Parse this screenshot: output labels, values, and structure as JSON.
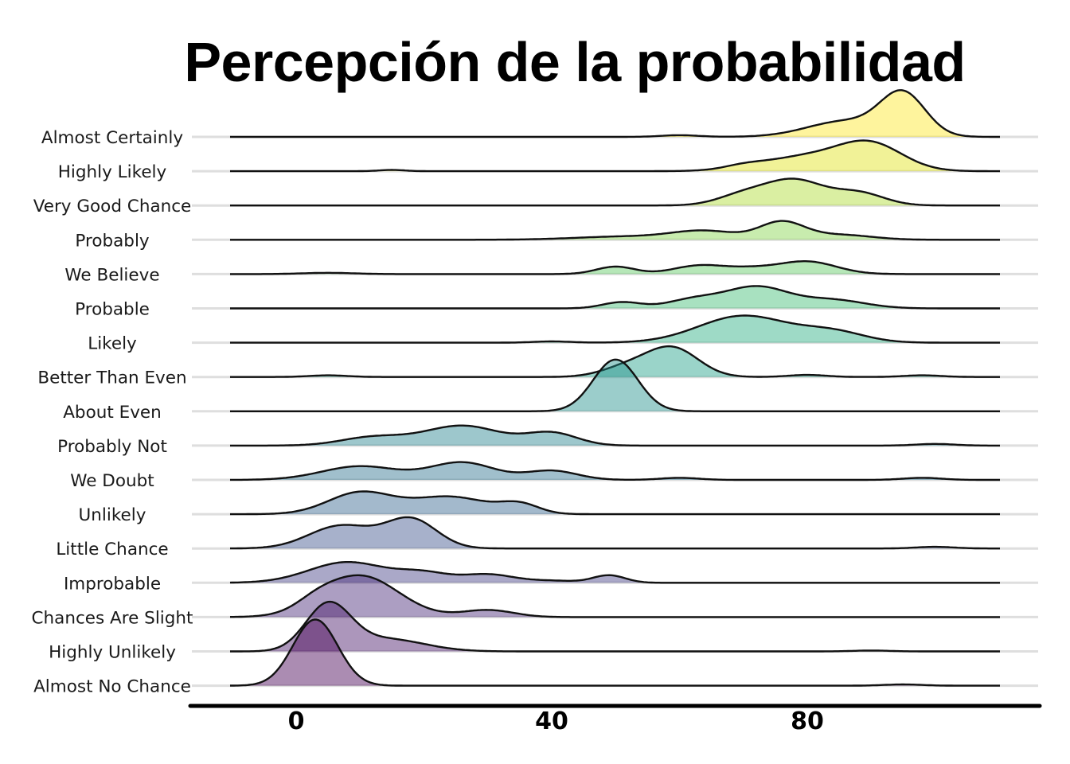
{
  "chart_data": {
    "type": "ridgeline",
    "title": "Percepción de la probabilidad",
    "xlabel": "",
    "ylabel": "",
    "x_range": [
      -10,
      110
    ],
    "x_ticks": [
      0,
      40,
      80
    ],
    "x_tick_labels": [
      "0",
      "40",
      "80"
    ],
    "grid": true,
    "legend": "none",
    "colormap": "viridis",
    "series": [
      {
        "name": "Almost Certainly",
        "color": "#fde725",
        "components": [
          [
            95,
            3.5,
            1.0
          ],
          [
            86,
            6,
            0.38
          ],
          [
            60,
            3,
            0.04
          ]
        ]
      },
      {
        "name": "Highly Likely",
        "color": "#dfe318",
        "components": [
          [
            90,
            5,
            0.6
          ],
          [
            80,
            7,
            0.35
          ],
          [
            70,
            3,
            0.07
          ],
          [
            15,
            2,
            0.03
          ]
        ]
      },
      {
        "name": "Very Good Chance",
        "color": "#addc30",
        "components": [
          [
            78,
            4.5,
            0.6
          ],
          [
            88,
            4,
            0.3
          ],
          [
            70,
            4,
            0.25
          ]
        ]
      },
      {
        "name": "Probably",
        "color": "#84d44b",
        "components": [
          [
            76,
            3.5,
            0.42
          ],
          [
            64,
            5,
            0.2
          ],
          [
            85,
            5,
            0.12
          ],
          [
            52,
            8,
            0.08
          ]
        ]
      },
      {
        "name": "We Believe",
        "color": "#5ec962",
        "components": [
          [
            80,
            4.5,
            0.3
          ],
          [
            63,
            4,
            0.2
          ],
          [
            50,
            3,
            0.18
          ],
          [
            71,
            4,
            0.12
          ],
          [
            5,
            4,
            0.03
          ]
        ]
      },
      {
        "name": "Probable",
        "color": "#3fbc73",
        "components": [
          [
            72,
            5,
            0.52
          ],
          [
            62,
            4,
            0.2
          ],
          [
            51,
            3,
            0.15
          ],
          [
            84,
            5,
            0.2
          ]
        ]
      },
      {
        "name": "Likely",
        "color": "#28ae80",
        "components": [
          [
            70,
            7,
            0.65
          ],
          [
            84,
            5,
            0.25
          ],
          [
            40,
            3,
            0.03
          ]
        ]
      },
      {
        "name": "Better Than Even",
        "color": "#1fa088",
        "components": [
          [
            59,
            4,
            0.68
          ],
          [
            52,
            4,
            0.25
          ],
          [
            80,
            3,
            0.05
          ],
          [
            98,
            3,
            0.04
          ],
          [
            5,
            3,
            0.04
          ]
        ]
      },
      {
        "name": "About Even",
        "color": "#21918c",
        "components": [
          [
            50,
            3.5,
            1.25
          ]
        ]
      },
      {
        "name": "Probably Not",
        "color": "#26828e",
        "components": [
          [
            26,
            6,
            0.48
          ],
          [
            12,
            5,
            0.2
          ],
          [
            40,
            4,
            0.3
          ],
          [
            100,
            3,
            0.04
          ]
        ]
      },
      {
        "name": "We Doubt",
        "color": "#2c728e",
        "components": [
          [
            26,
            5,
            0.42
          ],
          [
            10,
            6,
            0.33
          ],
          [
            40,
            4,
            0.22
          ],
          [
            60,
            3,
            0.05
          ],
          [
            98,
            3,
            0.05
          ]
        ]
      },
      {
        "name": "Unlikely",
        "color": "#33638d",
        "components": [
          [
            10,
            5,
            0.52
          ],
          [
            24,
            6,
            0.42
          ],
          [
            35,
            3,
            0.22
          ]
        ]
      },
      {
        "name": "Little Chance",
        "color": "#3b528b",
        "components": [
          [
            18,
            4,
            0.7
          ],
          [
            7,
            5,
            0.55
          ],
          [
            100,
            3,
            0.04
          ]
        ]
      },
      {
        "name": "Improbable",
        "color": "#433e85",
        "components": [
          [
            8,
            6,
            0.5
          ],
          [
            20,
            4,
            0.22
          ],
          [
            30,
            4,
            0.2
          ],
          [
            49,
            2.5,
            0.18
          ],
          [
            40,
            4,
            0.05
          ]
        ]
      },
      {
        "name": "Chances Are Slight",
        "color": "#482878",
        "components": [
          [
            10,
            6,
            1.0
          ],
          [
            30,
            4,
            0.17
          ],
          [
            3,
            3,
            0.15
          ]
        ]
      },
      {
        "name": "Highly Unlikely",
        "color": "#481668",
        "components": [
          [
            5,
            3.5,
            1.1
          ],
          [
            14,
            6,
            0.3
          ],
          [
            90,
            3,
            0.02
          ]
        ]
      },
      {
        "name": "Almost No Chance",
        "color": "#440154",
        "components": [
          [
            3,
            3.5,
            1.6
          ],
          [
            95,
            3,
            0.03
          ]
        ]
      }
    ]
  }
}
